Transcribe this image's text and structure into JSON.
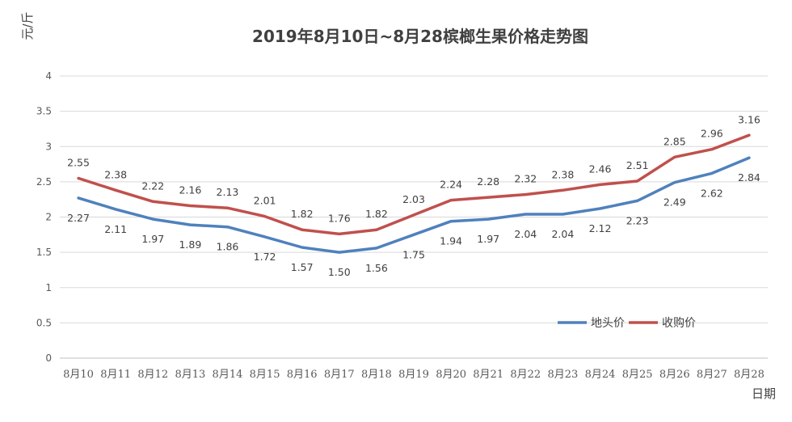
{
  "chart_data": {
    "type": "line",
    "title": "2019年8月10日~8月28槟榔生果价格走势图",
    "ylabel": "元/斤",
    "xlabel": "日期",
    "ylim": [
      0,
      4
    ],
    "yticks": [
      "0",
      "0.5",
      "1",
      "1.5",
      "2",
      "2.5",
      "3",
      "3.5",
      "4"
    ],
    "grid": true,
    "legend_position": "bottom-right",
    "categories": [
      "8月10",
      "8月11",
      "8月12",
      "8月13",
      "8月14",
      "8月15",
      "8月16",
      "8月17",
      "8月18",
      "8月19",
      "8月20",
      "8月21",
      "8月22",
      "8月23",
      "8月24",
      "8月25",
      "8月26",
      "8月27",
      "8月28"
    ],
    "series": [
      {
        "name": "地头价",
        "color": "#4f81bd",
        "values": [
          2.27,
          2.11,
          1.97,
          1.89,
          1.86,
          1.72,
          1.57,
          1.5,
          1.56,
          1.75,
          1.94,
          1.97,
          2.04,
          2.04,
          2.12,
          2.23,
          2.49,
          2.62,
          2.84
        ],
        "labels": [
          "2.27",
          "2.11",
          "1.97",
          "1.89",
          "1.86",
          "1.72",
          "1.57",
          "1.50",
          "1.56",
          "1.75",
          "1.94",
          "1.97",
          "2.04",
          "2.04",
          "2.12",
          "2.23",
          "2.49",
          "2.62",
          "2.84"
        ],
        "label_position": "below"
      },
      {
        "name": "收购价",
        "color": "#c0504d",
        "values": [
          2.55,
          2.38,
          2.22,
          2.16,
          2.13,
          2.01,
          1.82,
          1.76,
          1.82,
          2.03,
          2.24,
          2.28,
          2.32,
          2.38,
          2.46,
          2.51,
          2.85,
          2.96,
          3.16
        ],
        "labels": [
          "2.55",
          "2.38",
          "2.22",
          "2.16",
          "2.13",
          "2.01",
          "1.82",
          "1.76",
          "1.82",
          "2.03",
          "2.24",
          "2.28",
          "2.32",
          "2.38",
          "2.46",
          "2.51",
          "2.85",
          "2.96",
          "3.16"
        ],
        "label_position": "above"
      }
    ]
  }
}
